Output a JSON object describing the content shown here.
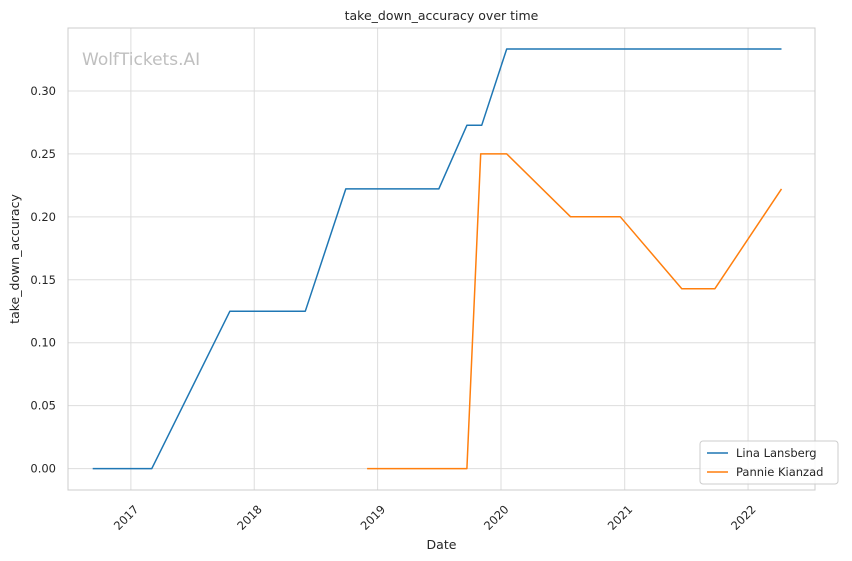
{
  "chart_data": {
    "type": "line",
    "title": "take_down_accuracy over time",
    "xlabel": "Date",
    "ylabel": "take_down_accuracy",
    "watermark": "WolfTickets.AI",
    "x_ticks": [
      "2017",
      "2018",
      "2019",
      "2020",
      "2021",
      "2022"
    ],
    "y_ticks": [
      "0.00",
      "0.05",
      "0.10",
      "0.15",
      "0.20",
      "0.25",
      "0.30"
    ],
    "ylim": [
      -0.017,
      0.35
    ],
    "xlim": [
      "2016-06-29",
      "2022-07-18"
    ],
    "grid": true,
    "legend_position": "lower-right",
    "series": [
      {
        "name": "Lina Lansberg",
        "color": "#1f77b4",
        "points": [
          {
            "x": "2016-09-10",
            "y": 0.0
          },
          {
            "x": "2017-03-04",
            "y": 0.0
          },
          {
            "x": "2017-10-21",
            "y": 0.125
          },
          {
            "x": "2018-06-01",
            "y": 0.125
          },
          {
            "x": "2018-09-29",
            "y": 0.2222
          },
          {
            "x": "2019-07-01",
            "y": 0.2222
          },
          {
            "x": "2019-09-22",
            "y": 0.2727
          },
          {
            "x": "2019-11-05",
            "y": 0.2727
          },
          {
            "x": "2020-01-18",
            "y": 0.3333
          },
          {
            "x": "2022-04-10",
            "y": 0.3333
          }
        ]
      },
      {
        "name": "Pannie Kianzad",
        "color": "#ff7f0e",
        "points": [
          {
            "x": "2018-12-01",
            "y": 0.0
          },
          {
            "x": "2019-09-22",
            "y": 0.0
          },
          {
            "x": "2019-11-02",
            "y": 0.25
          },
          {
            "x": "2020-01-18",
            "y": 0.25
          },
          {
            "x": "2020-07-25",
            "y": 0.2
          },
          {
            "x": "2020-12-19",
            "y": 0.2
          },
          {
            "x": "2021-06-19",
            "y": 0.1429
          },
          {
            "x": "2021-09-25",
            "y": 0.1429
          },
          {
            "x": "2022-04-10",
            "y": 0.2222
          }
        ]
      }
    ]
  }
}
